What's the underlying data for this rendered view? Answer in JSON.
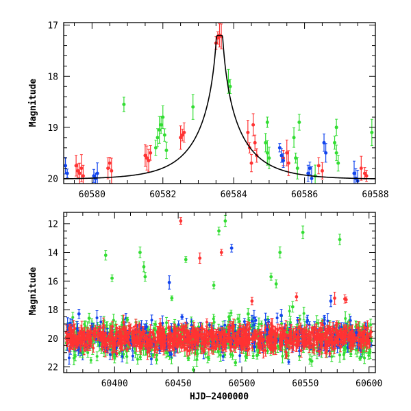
{
  "colors": {
    "green": "#33dd33",
    "red": "#ff3333",
    "blue": "#1144ee",
    "model": "#000000",
    "axis": "#000000"
  },
  "chart_data": [
    {
      "type": "scatter",
      "panel": "top",
      "title": "",
      "xlabel": "",
      "ylabel": "Magnitude",
      "xlim": [
        60579.2,
        60588.0
      ],
      "ylim": [
        20.1,
        16.95
      ],
      "y_inverted": true,
      "xticks": [
        60580,
        60582,
        60584,
        60586,
        60588
      ],
      "yticks": [
        17,
        18,
        19,
        20
      ],
      "grid": false,
      "legend": "none",
      "model_curve": {
        "type": "line",
        "color": "black",
        "peak_x": 60583.6,
        "peak_mag": 17.2,
        "baseline_mag": 20.02,
        "tE": 1.35
      },
      "series": [
        {
          "color": "red",
          "points": [
            [
              60579.55,
              19.75
            ],
            [
              60579.6,
              19.85
            ],
            [
              60579.65,
              19.9
            ],
            [
              60579.7,
              19.8
            ],
            [
              60579.75,
              19.95
            ],
            [
              60580.45,
              19.8
            ],
            [
              60580.5,
              19.7
            ],
            [
              60580.55,
              19.85
            ],
            [
              60581.5,
              19.55
            ],
            [
              60581.55,
              19.6
            ],
            [
              60581.6,
              19.65
            ],
            [
              60581.65,
              19.5
            ],
            [
              60582.5,
              19.2
            ],
            [
              60582.55,
              19.15
            ],
            [
              60582.6,
              19.1
            ],
            [
              60583.5,
              17.35
            ],
            [
              60583.55,
              17.25
            ],
            [
              60583.6,
              17.2
            ],
            [
              60583.65,
              17.22
            ],
            [
              60584.4,
              19.1
            ],
            [
              60584.45,
              19.4
            ],
            [
              60584.5,
              19.7
            ],
            [
              60584.55,
              18.95
            ],
            [
              60584.6,
              19.3
            ],
            [
              60584.65,
              19.55
            ],
            [
              60585.4,
              19.6
            ],
            [
              60585.5,
              19.5
            ],
            [
              60585.55,
              19.7
            ],
            [
              60586.4,
              19.75
            ],
            [
              60586.5,
              19.85
            ],
            [
              60587.6,
              19.8
            ],
            [
              60587.7,
              19.9
            ],
            [
              60587.75,
              19.95
            ]
          ]
        },
        {
          "color": "green",
          "points": [
            [
              60580.9,
              18.55
            ],
            [
              60581.8,
              19.4
            ],
            [
              60581.85,
              19.2
            ],
            [
              60581.9,
              19.05
            ],
            [
              60581.95,
              18.95
            ],
            [
              60582.0,
              18.8
            ],
            [
              60582.05,
              19.15
            ],
            [
              60582.1,
              19.45
            ],
            [
              60582.85,
              18.6
            ],
            [
              60583.85,
              18.1
            ],
            [
              60583.9,
              18.2
            ],
            [
              60584.9,
              19.3
            ],
            [
              60584.95,
              19.5
            ],
            [
              60585.0,
              19.6
            ],
            [
              60584.95,
              18.9
            ],
            [
              60585.7,
              19.2
            ],
            [
              60585.75,
              19.6
            ],
            [
              60585.8,
              19.8
            ],
            [
              60585.85,
              18.9
            ],
            [
              60586.3,
              19.95
            ],
            [
              60586.85,
              19.3
            ],
            [
              60586.9,
              19.5
            ],
            [
              60586.95,
              19.7
            ],
            [
              60586.9,
              19.0
            ],
            [
              60587.9,
              19.1
            ]
          ]
        },
        {
          "color": "blue",
          "points": [
            [
              60579.25,
              19.75
            ],
            [
              60579.3,
              19.9
            ],
            [
              60580.05,
              19.95
            ],
            [
              60580.1,
              20.0
            ],
            [
              60580.15,
              19.9
            ],
            [
              60585.3,
              19.4
            ],
            [
              60585.35,
              19.55
            ],
            [
              60585.4,
              19.65
            ],
            [
              60586.1,
              19.9
            ],
            [
              60586.15,
              19.8
            ],
            [
              60586.2,
              20.0
            ],
            [
              60586.55,
              19.3
            ],
            [
              60586.6,
              19.5
            ],
            [
              60587.4,
              19.9
            ],
            [
              60587.45,
              20.0
            ],
            [
              60587.5,
              20.05
            ]
          ]
        }
      ]
    },
    {
      "type": "scatter",
      "panel": "bottom",
      "title": "",
      "xlabel": "HJD−2400000",
      "ylabel": "Magnitude",
      "xlim": [
        60360,
        60605
      ],
      "ylim": [
        22.4,
        11.2
      ],
      "y_inverted": true,
      "xticks": [
        60400,
        60450,
        60500,
        60550,
        60600
      ],
      "yticks": [
        12,
        14,
        16,
        18,
        20,
        22
      ],
      "grid": false,
      "legend": "none",
      "dense_band": {
        "x_range": [
          60362,
          60602
        ],
        "center_mag": 20.0,
        "spread": 0.6,
        "colors": [
          "green",
          "blue",
          "red"
        ]
      },
      "series": [
        {
          "color": "green",
          "points": [
            [
              60393,
              14.2
            ],
            [
              60398,
              15.8
            ],
            [
              60420,
              14.0
            ],
            [
              60423,
              15.0
            ],
            [
              60424,
              15.7
            ],
            [
              60456,
              14.5
            ],
            [
              60478,
              16.3
            ],
            [
              60482,
              12.5
            ],
            [
              60487,
              11.8
            ],
            [
              60523,
              15.7
            ],
            [
              60527,
              16.2
            ],
            [
              60530,
              14.0
            ],
            [
              60548,
              12.6
            ],
            [
              60577,
              13.1
            ],
            [
              60445,
              17.2
            ],
            [
              60490,
              18.5
            ],
            [
              60540,
              17.8
            ],
            [
              60410,
              18.7
            ],
            [
              60375,
              21.0
            ],
            [
              60400,
              21.3
            ],
            [
              60433,
              21.5
            ],
            [
              60458,
              21.4
            ],
            [
              60462,
              22.2
            ],
            [
              60495,
              21.7
            ],
            [
              60512,
              21.2
            ],
            [
              60555,
              21.6
            ],
            [
              60593,
              21.4
            ],
            [
              60600,
              21.0
            ],
            [
              60380,
              18.6
            ],
            [
              60505,
              18.3
            ]
          ]
        },
        {
          "color": "red",
          "points": [
            [
              60452,
              11.8
            ],
            [
              60467,
              14.4
            ],
            [
              60484,
              14.0
            ],
            [
              60508,
              17.4
            ],
            [
              60543,
              17.1
            ],
            [
              60573,
              17.2
            ],
            [
              60581,
              17.25
            ],
            [
              60582,
              17.3
            ],
            [
              60400,
              20.5
            ],
            [
              60430,
              19.6
            ],
            [
              60470,
              20.9
            ],
            [
              60500,
              20.7
            ],
            [
              60535,
              20.3
            ],
            [
              60560,
              19.8
            ],
            [
              60585,
              20.6
            ]
          ]
        },
        {
          "color": "blue",
          "points": [
            [
              60443,
              16.1
            ],
            [
              60492,
              13.7
            ],
            [
              60570,
              17.4
            ],
            [
              60372,
              18.3
            ],
            [
              60453,
              18.5
            ],
            [
              60520,
              19.4
            ],
            [
              60531,
              18.4
            ],
            [
              60425,
              19.2
            ],
            [
              60510,
              20.6
            ],
            [
              60590,
              19.6
            ]
          ]
        }
      ]
    }
  ]
}
